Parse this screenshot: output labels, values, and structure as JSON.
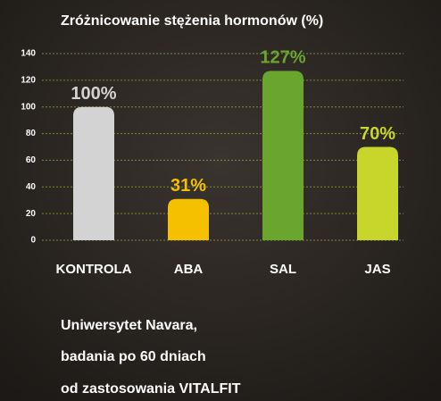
{
  "chart_data": {
    "type": "bar",
    "title": "Zróżnicowanie stężenia hormonów (%)",
    "categories": [
      "KONTROLA",
      "ABA",
      "SAL",
      "JAS"
    ],
    "values": [
      100,
      31,
      127,
      70
    ],
    "value_labels": [
      "100%",
      "31%",
      "127%",
      "70%"
    ],
    "colors": [
      "#d3d3d3",
      "#f5c000",
      "#6aa52e",
      "#c8d62b"
    ],
    "ylim": [
      0,
      140
    ],
    "yticks": [
      0,
      20,
      40,
      60,
      80,
      100,
      120,
      140
    ],
    "grid": true
  },
  "footer": [
    "Uniwersytet Navara,",
    "badania po 60 dniach",
    "od zastosowania VITALFIT"
  ]
}
